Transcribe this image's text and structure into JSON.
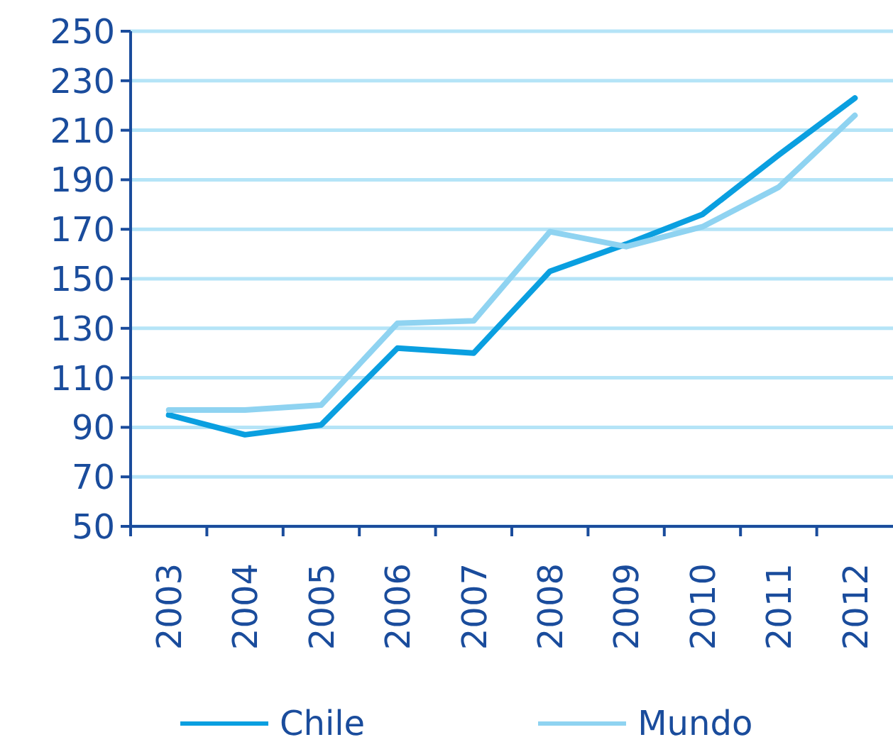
{
  "chart_data": {
    "type": "line",
    "categories": [
      "2003",
      "2004",
      "2005",
      "2006",
      "2007",
      "2008",
      "2009",
      "2010",
      "2011",
      "2012"
    ],
    "series": [
      {
        "name": "Chile",
        "color": "#0a9fe0",
        "values": [
          95,
          87,
          91,
          122,
          120,
          153,
          164,
          176,
          200,
          223
        ]
      },
      {
        "name": "Mundo",
        "color": "#8fd3f1",
        "values": [
          97,
          97,
          99,
          132,
          133,
          169,
          163,
          171,
          187,
          216
        ]
      }
    ],
    "ylim": [
      50,
      250
    ],
    "yticks": [
      50,
      70,
      90,
      110,
      130,
      150,
      170,
      190,
      210,
      230,
      250
    ],
    "grid": "y",
    "legend": "bottom",
    "line_style": "solid"
  }
}
